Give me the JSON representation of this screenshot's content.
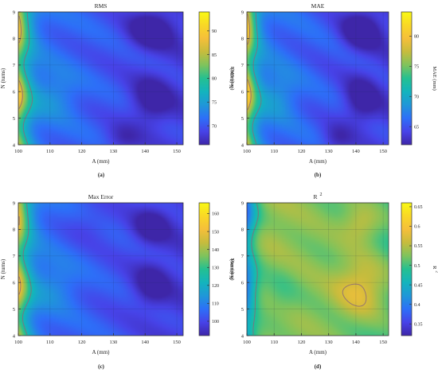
{
  "figure": {
    "panel_tags": [
      "(a)",
      "(b)",
      "(c)",
      "(d)"
    ]
  },
  "colormap": [
    "#3e26a8",
    "#4743e8",
    "#2d6ff8",
    "#1f97d8",
    "#13b4bd",
    "#24c091",
    "#7fc35c",
    "#c6bc3d",
    "#f5bf3a",
    "#f9d826",
    "#f9f914"
  ],
  "chart_data": [
    {
      "type": "heatmap",
      "title": "RMS",
      "xlabel": "A (mm)",
      "ylabel": "N (turns)",
      "colorbar_label": "RMS (mm)",
      "xlim": [
        100,
        152
      ],
      "ylim": [
        4,
        9
      ],
      "x_ticks": [
        100,
        110,
        120,
        130,
        140,
        150
      ],
      "y_ticks": [
        4,
        5,
        6,
        7,
        8,
        9
      ],
      "cbar_range": [
        66,
        94
      ],
      "cbar_ticks": [
        70,
        75,
        80,
        85,
        90
      ],
      "grid": true,
      "contour_values": [
        78,
        86
      ],
      "field": {
        "base": 72,
        "a_edge": 22,
        "edge_center": 101,
        "edge_width": 4.5,
        "a_slope": 3.5,
        "wiggle": 1.2,
        "blobs": [
          [
            142,
            8.3,
            5,
            0.5,
            -6
          ],
          [
            142,
            5.7,
            4.5,
            0.6,
            -5
          ],
          [
            112,
            5.9,
            5,
            0.6,
            3
          ],
          [
            133,
            4.2,
            4,
            0.4,
            -3
          ]
        ]
      }
    },
    {
      "type": "heatmap",
      "title": "MAE",
      "xlabel": "A (mm)",
      "ylabel": "N (turns)",
      "colorbar_label": "MAE (mm)",
      "xlim": [
        100,
        152
      ],
      "ylim": [
        4,
        9
      ],
      "x_ticks": [
        100,
        110,
        120,
        130,
        140,
        150
      ],
      "y_ticks": [
        4,
        5,
        6,
        7,
        8,
        9
      ],
      "cbar_range": [
        62,
        84
      ],
      "cbar_ticks": [
        65,
        70,
        75,
        80
      ],
      "grid": true,
      "contour_values": [
        71,
        78
      ],
      "field": {
        "base": 67,
        "a_edge": 18,
        "edge_center": 101,
        "edge_width": 4.5,
        "a_slope": 3,
        "wiggle": 1,
        "blobs": [
          [
            142,
            8.3,
            5,
            0.5,
            -5
          ],
          [
            142,
            5.7,
            4.5,
            0.6,
            -4
          ],
          [
            112,
            5.9,
            5,
            0.6,
            2.5
          ],
          [
            133,
            4.2,
            4,
            0.4,
            -2.5
          ]
        ]
      }
    },
    {
      "type": "heatmap",
      "title": "Max Error",
      "xlabel": "A (mm)",
      "ylabel": "N (turns)",
      "colorbar_label": "Max (mm)",
      "xlim": [
        100,
        152
      ],
      "ylim": [
        4,
        9
      ],
      "x_ticks": [
        100,
        110,
        120,
        130,
        140,
        150
      ],
      "y_ticks": [
        4,
        5,
        6,
        7,
        8,
        9
      ],
      "cbar_range": [
        92,
        166
      ],
      "cbar_ticks": [
        100,
        110,
        120,
        130,
        140,
        150,
        160
      ],
      "grid": true,
      "contour_values": [
        125,
        150
      ],
      "field": {
        "base": 108,
        "a_edge": 58,
        "edge_center": 101,
        "edge_width": 4.5,
        "a_slope": 10,
        "wiggle": 3,
        "blobs": [
          [
            142,
            8.1,
            4,
            0.45,
            -13
          ],
          [
            142,
            5.9,
            4,
            0.55,
            -12
          ],
          [
            112,
            5.9,
            5,
            0.6,
            7
          ],
          [
            122,
            8.2,
            5,
            0.5,
            -4
          ]
        ]
      }
    },
    {
      "type": "heatmap",
      "title": "R",
      "title_superscript": "2",
      "xlabel": "A (mm)",
      "ylabel": "N (turns)",
      "colorbar_label": "R",
      "colorbar_label_superscript": "2",
      "xlim": [
        100,
        152
      ],
      "ylim": [
        4,
        9
      ],
      "x_ticks": [
        100,
        110,
        120,
        130,
        140,
        150
      ],
      "y_ticks": [
        4,
        5,
        6,
        7,
        8,
        9
      ],
      "cbar_range": [
        0.32,
        0.66
      ],
      "cbar_ticks": [
        0.35,
        0.4,
        0.45,
        0.5,
        0.55,
        0.6,
        0.65
      ],
      "grid": true,
      "contour_values": [
        0.48,
        0.57
      ],
      "field": {
        "base": 0.55,
        "a_edge": -0.22,
        "edge_center": 101,
        "edge_width": 5,
        "a_slope": 0.05,
        "wiggle": 0.012,
        "blobs": [
          [
            142,
            5.8,
            7,
            0.8,
            0.07
          ],
          [
            142,
            8.2,
            5,
            0.5,
            0.05
          ],
          [
            112,
            5.5,
            5,
            0.8,
            -0.03
          ]
        ]
      }
    }
  ]
}
